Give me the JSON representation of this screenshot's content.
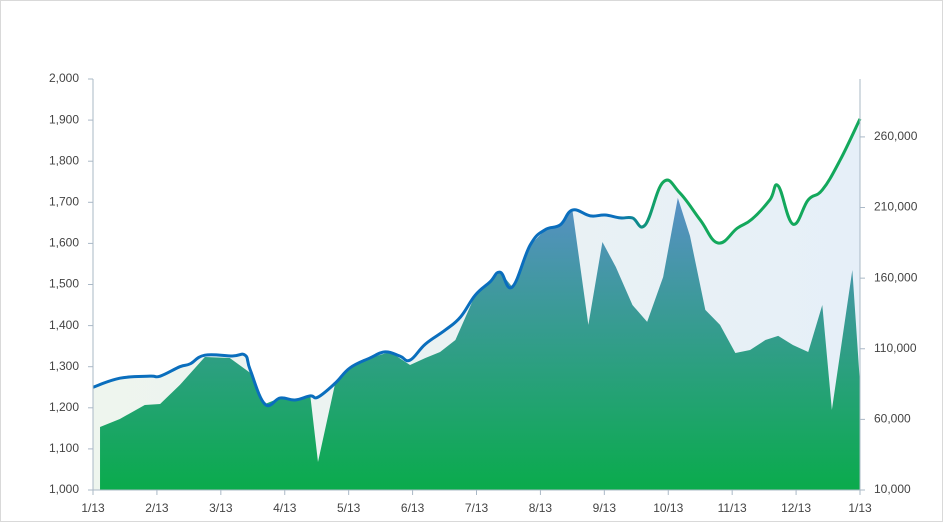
{
  "chart_data": {
    "type": "line-area",
    "xlim": [
      0,
      12
    ],
    "xticks": [
      {
        "value": 0,
        "label": "1/13"
      },
      {
        "value": 1,
        "label": "2/13"
      },
      {
        "value": 2,
        "label": "3/13"
      },
      {
        "value": 3,
        "label": "4/13"
      },
      {
        "value": 4,
        "label": "5/13"
      },
      {
        "value": 5,
        "label": "6/13"
      },
      {
        "value": 6,
        "label": "7/13"
      },
      {
        "value": 7,
        "label": "8/13"
      },
      {
        "value": 8,
        "label": "9/13"
      },
      {
        "value": 9,
        "label": "10/13"
      },
      {
        "value": 10,
        "label": "11/13"
      },
      {
        "value": 11,
        "label": "12/13"
      },
      {
        "value": 12,
        "label": "1/13"
      }
    ],
    "ylim": [
      1000,
      2000
    ],
    "yticks": [
      {
        "value": 1000,
        "label": "1,000"
      },
      {
        "value": 1100,
        "label": "1,100"
      },
      {
        "value": 1200,
        "label": "1,200"
      },
      {
        "value": 1300,
        "label": "1,300"
      },
      {
        "value": 1400,
        "label": "1,400"
      },
      {
        "value": 1500,
        "label": "1,500"
      },
      {
        "value": 1600,
        "label": "1,600"
      },
      {
        "value": 1700,
        "label": "1,700"
      },
      {
        "value": 1800,
        "label": "1,800"
      },
      {
        "value": 1900,
        "label": "1,900"
      },
      {
        "value": 2000,
        "label": "2,000"
      }
    ],
    "y2lim": [
      10000,
      301000
    ],
    "y2ticks": [
      {
        "value": 10000,
        "label": "10,000"
      },
      {
        "value": 60000,
        "label": "60,000"
      },
      {
        "value": 110000,
        "label": "110,000"
      },
      {
        "value": 160000,
        "label": "160,000"
      },
      {
        "value": 210000,
        "label": "210,000"
      },
      {
        "value": 260000,
        "label": "260,000"
      }
    ],
    "series": [
      {
        "kind": "area",
        "axis": "y2",
        "color": "#0aab4c",
        "color_top": "#5b8fc9",
        "x": [
          0.11,
          0.42,
          0.81,
          1.05,
          1.36,
          1.75,
          2.14,
          2.46,
          2.69,
          2.93,
          3.24,
          3.4,
          3.52,
          3.79,
          4.02,
          4.33,
          4.65,
          4.96,
          5.2,
          5.43,
          5.67,
          5.98,
          6.21,
          6.37,
          6.56,
          6.84,
          7.07,
          7.31,
          7.5,
          7.75,
          7.97,
          8.18,
          8.44,
          8.67,
          8.92,
          9.15,
          9.34,
          9.58,
          9.81,
          10.05,
          10.28,
          10.52,
          10.72,
          10.95,
          11.19,
          11.41,
          11.56,
          11.88,
          12
        ],
        "values": [
          54600,
          60300,
          70200,
          70900,
          84400,
          104200,
          103500,
          92900,
          70900,
          75200,
          73700,
          76600,
          29800,
          85800,
          96400,
          103500,
          107700,
          98500,
          103500,
          107700,
          116200,
          148100,
          157300,
          164400,
          153800,
          183500,
          194100,
          197700,
          208300,
          126900,
          185600,
          167900,
          141000,
          129000,
          160800,
          216800,
          189900,
          137500,
          126900,
          107000,
          109100,
          116200,
          119100,
          112700,
          107700,
          141000,
          66700,
          165800,
          85100
        ]
      },
      {
        "kind": "line",
        "color": "#0a6ebd",
        "color_end": "#13a85c",
        "fill_start": "#eef5ee",
        "fill_end": "#e6eff8",
        "x": [
          0,
          0.42,
          0.89,
          1.05,
          1.36,
          1.52,
          1.75,
          2.18,
          2.38,
          2.46,
          2.69,
          2.93,
          3.16,
          3.4,
          3.52,
          3.79,
          4.02,
          4.33,
          4.57,
          4.8,
          4.96,
          5.2,
          5.51,
          5.75,
          5.98,
          6.21,
          6.37,
          6.56,
          6.84,
          7.07,
          7.31,
          7.5,
          7.78,
          8.01,
          8.25,
          8.44,
          8.64,
          8.92,
          9.18,
          9.5,
          9.78,
          10.08,
          10.31,
          10.59,
          10.72,
          10.95,
          11.19,
          11.41,
          11.69,
          12
        ],
        "values": [
          1250,
          1272,
          1277,
          1277,
          1300,
          1307,
          1328,
          1326,
          1328,
          1292,
          1209,
          1224,
          1219,
          1229,
          1226,
          1260,
          1297,
          1321,
          1336,
          1326,
          1316,
          1355,
          1389,
          1421,
          1474,
          1506,
          1530,
          1494,
          1596,
          1633,
          1645,
          1681,
          1667,
          1669,
          1662,
          1662,
          1645,
          1749,
          1723,
          1657,
          1601,
          1637,
          1659,
          1706,
          1740,
          1647,
          1706,
          1730,
          1803,
          1903
        ]
      }
    ]
  }
}
